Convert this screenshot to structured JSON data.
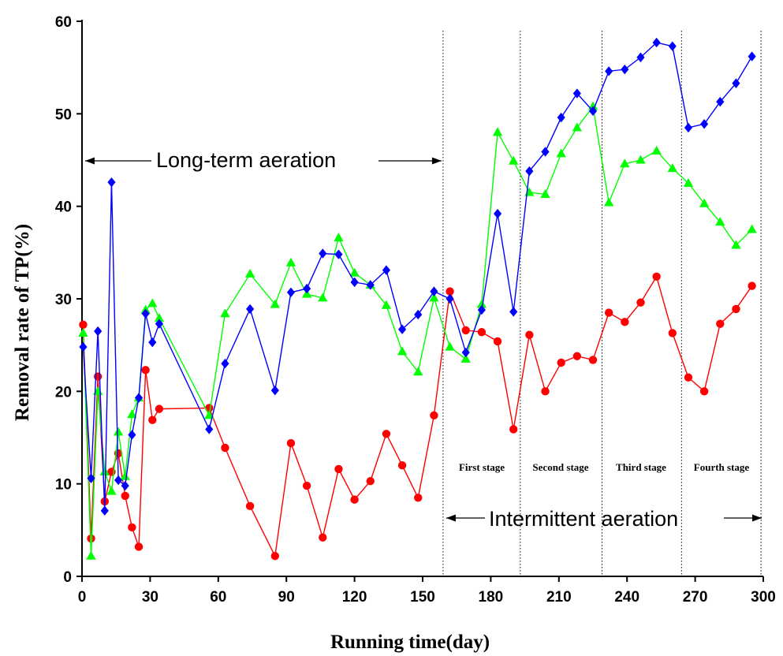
{
  "chart_data": {
    "type": "line",
    "xlabel": "Running time(day)",
    "ylabel": "Removal rate of TP(%)",
    "xlim": [
      0,
      300
    ],
    "ylim": [
      0,
      60
    ],
    "xticks": [
      0,
      30,
      60,
      90,
      120,
      150,
      180,
      210,
      240,
      270,
      300
    ],
    "yticks": [
      0,
      10,
      20,
      30,
      40,
      50,
      60
    ],
    "grid": false,
    "series": [
      {
        "color": "#ff0000",
        "marker": "circle",
        "points": [
          [
            0.5,
            27.2
          ],
          [
            4,
            4.1
          ],
          [
            7,
            21.6
          ],
          [
            10,
            8.1
          ],
          [
            13,
            11.3
          ],
          [
            16,
            13.3
          ],
          [
            19,
            8.7
          ],
          [
            22,
            5.3
          ],
          [
            25,
            3.2
          ],
          [
            28,
            22.3
          ],
          [
            31,
            16.9
          ],
          [
            34,
            18.1
          ],
          [
            56,
            18.2
          ],
          [
            63,
            13.9
          ],
          [
            74,
            7.6
          ],
          [
            85,
            2.2
          ],
          [
            92,
            14.4
          ],
          [
            99,
            9.8
          ],
          [
            106,
            4.2
          ],
          [
            113,
            11.6
          ],
          [
            120,
            8.3
          ],
          [
            127,
            10.3
          ],
          [
            134,
            15.4
          ],
          [
            141,
            12.0
          ],
          [
            148,
            8.5
          ],
          [
            155,
            17.4
          ],
          [
            162,
            30.8
          ],
          [
            169,
            26.6
          ],
          [
            176,
            26.4
          ],
          [
            183,
            25.4
          ],
          [
            190,
            15.9
          ],
          [
            197,
            26.1
          ],
          [
            204,
            20.0
          ],
          [
            211,
            23.1
          ],
          [
            218,
            23.8
          ],
          [
            225,
            23.4
          ],
          [
            232,
            28.5
          ],
          [
            239,
            27.5
          ],
          [
            246,
            29.6
          ],
          [
            253,
            32.4
          ],
          [
            260,
            26.3
          ],
          [
            267,
            21.5
          ],
          [
            274,
            20.0
          ],
          [
            281,
            27.3
          ],
          [
            288,
            28.9
          ],
          [
            295,
            31.4
          ]
        ]
      },
      {
        "color": "#00ff00",
        "marker": "triangle",
        "points": [
          [
            0.5,
            26.3
          ],
          [
            4,
            2.2
          ],
          [
            7,
            20.0
          ],
          [
            10,
            11.3
          ],
          [
            13,
            9.2
          ],
          [
            16,
            15.6
          ],
          [
            19,
            10.8
          ],
          [
            22,
            17.5
          ],
          [
            25,
            19.3
          ],
          [
            28,
            28.8
          ],
          [
            31,
            29.5
          ],
          [
            34,
            27.9
          ],
          [
            56,
            17.4
          ],
          [
            63,
            28.4
          ],
          [
            74,
            32.7
          ],
          [
            85,
            29.4
          ],
          [
            92,
            33.9
          ],
          [
            99,
            30.5
          ],
          [
            106,
            30.1
          ],
          [
            113,
            36.6
          ],
          [
            120,
            32.8
          ],
          [
            127,
            31.5
          ],
          [
            134,
            29.3
          ],
          [
            141,
            24.3
          ],
          [
            148,
            22.1
          ],
          [
            155,
            30.1
          ],
          [
            162,
            24.8
          ],
          [
            169,
            23.5
          ],
          [
            176,
            29.4
          ],
          [
            183,
            48.0
          ],
          [
            190,
            44.9
          ],
          [
            197,
            41.5
          ],
          [
            204,
            41.3
          ],
          [
            211,
            45.7
          ],
          [
            218,
            48.5
          ],
          [
            225,
            50.8
          ],
          [
            232,
            40.4
          ],
          [
            239,
            44.6
          ],
          [
            246,
            45.0
          ],
          [
            253,
            46.0
          ],
          [
            260,
            44.1
          ],
          [
            267,
            42.5
          ],
          [
            274,
            40.3
          ],
          [
            281,
            38.3
          ],
          [
            288,
            35.8
          ],
          [
            295,
            37.5
          ]
        ]
      },
      {
        "color": "#0000ff",
        "marker": "diamond",
        "points": [
          [
            0.5,
            24.8
          ],
          [
            4,
            10.6
          ],
          [
            7,
            26.5
          ],
          [
            10,
            7.1
          ],
          [
            13,
            42.6
          ],
          [
            16,
            10.4
          ],
          [
            19,
            9.8
          ],
          [
            22,
            15.3
          ],
          [
            25,
            19.3
          ],
          [
            28,
            28.4
          ],
          [
            31,
            25.3
          ],
          [
            34,
            27.3
          ],
          [
            56,
            15.9
          ],
          [
            63,
            23.0
          ],
          [
            74,
            28.9
          ],
          [
            85,
            20.1
          ],
          [
            92,
            30.7
          ],
          [
            99,
            31.1
          ],
          [
            106,
            34.9
          ],
          [
            113,
            34.8
          ],
          [
            120,
            31.8
          ],
          [
            127,
            31.5
          ],
          [
            134,
            33.1
          ],
          [
            141,
            26.7
          ],
          [
            148,
            28.3
          ],
          [
            155,
            30.8
          ],
          [
            162,
            30.0
          ],
          [
            169,
            24.2
          ],
          [
            176,
            28.8
          ],
          [
            183,
            39.2
          ],
          [
            190,
            28.6
          ],
          [
            197,
            43.8
          ],
          [
            204,
            45.9
          ],
          [
            211,
            49.6
          ],
          [
            218,
            52.2
          ],
          [
            225,
            50.3
          ],
          [
            232,
            54.6
          ],
          [
            239,
            54.8
          ],
          [
            246,
            56.1
          ],
          [
            253,
            57.7
          ],
          [
            260,
            57.3
          ],
          [
            267,
            48.5
          ],
          [
            274,
            48.9
          ],
          [
            281,
            51.3
          ],
          [
            288,
            53.3
          ],
          [
            295,
            56.2
          ]
        ]
      }
    ],
    "dividers": [
      159,
      193,
      229,
      264,
      299
    ],
    "annotations": {
      "long_term": "Long-term aeration",
      "intermittent": "Intermittent aeration",
      "stages": [
        "First stage",
        "Second stage",
        "Third stage",
        "Fourth stage"
      ]
    }
  }
}
